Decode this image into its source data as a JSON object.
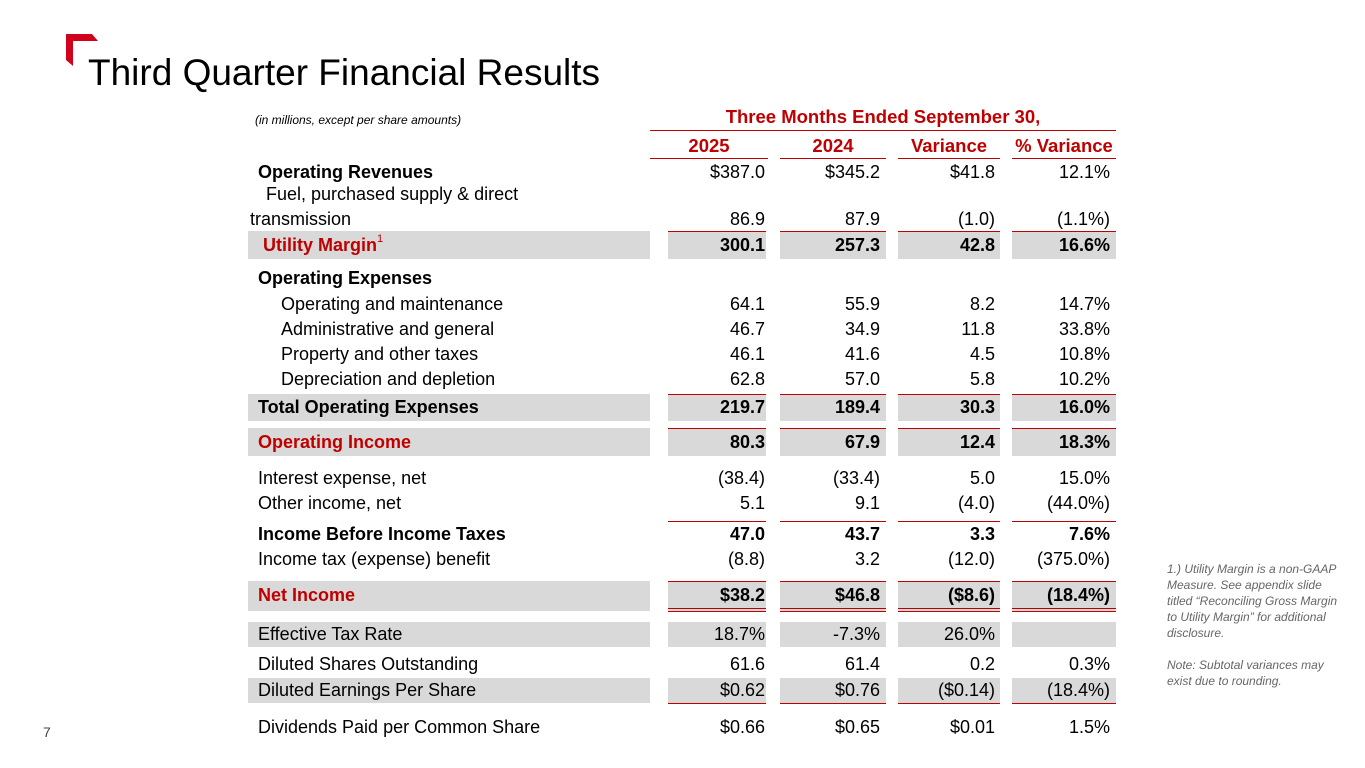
{
  "slide": {
    "title": "Third Quarter Financial Results",
    "page_number": "7",
    "accent_color": "#c00000"
  },
  "table": {
    "units_note": "(in millions, except per share amounts)",
    "period_header": "Three Months Ended September 30,",
    "columns": [
      "2025",
      "2024",
      "Variance",
      "% Variance"
    ],
    "rows": [
      {
        "label": "Operating Revenues",
        "values": [
          "$387.0",
          "$345.2",
          "$41.8",
          "12.1%"
        ]
      },
      {
        "label": "Fuel, purchased supply & direct",
        "label2": "transmission",
        "values": [
          "86.9",
          "87.9",
          "(1.0)",
          "(1.1%)"
        ]
      },
      {
        "label": "Utility Margin",
        "sup": "1",
        "values": [
          "300.1",
          "257.3",
          "42.8",
          "16.6%"
        ]
      },
      {
        "label": "Operating Expenses"
      },
      {
        "label": "Operating and maintenance",
        "values": [
          "64.1",
          "55.9",
          "8.2",
          "14.7%"
        ]
      },
      {
        "label": "Administrative and general",
        "values": [
          "46.7",
          "34.9",
          "11.8",
          "33.8%"
        ]
      },
      {
        "label": "Property and other taxes",
        "values": [
          "46.1",
          "41.6",
          "4.5",
          "10.8%"
        ]
      },
      {
        "label": "Depreciation and depletion",
        "values": [
          "62.8",
          "57.0",
          "5.8",
          "10.2%"
        ]
      },
      {
        "label": "Total Operating Expenses",
        "values": [
          "219.7",
          "189.4",
          "30.3",
          "16.0%"
        ]
      },
      {
        "label": "Operating Income",
        "values": [
          "80.3",
          "67.9",
          "12.4",
          "18.3%"
        ]
      },
      {
        "label": "Interest expense, net",
        "values": [
          "(38.4)",
          "(33.4)",
          "5.0",
          "15.0%"
        ]
      },
      {
        "label": "Other income, net",
        "values": [
          "5.1",
          "9.1",
          "(4.0)",
          "(44.0%)"
        ]
      },
      {
        "label": "Income Before Income Taxes",
        "values": [
          "47.0",
          "43.7",
          "3.3",
          "7.6%"
        ]
      },
      {
        "label": "Income tax (expense) benefit",
        "values": [
          "(8.8)",
          "3.2",
          "(12.0)",
          "(375.0%)"
        ]
      },
      {
        "label": "Net Income",
        "values": [
          "$38.2",
          "$46.8",
          "($8.6)",
          "(18.4%)"
        ]
      },
      {
        "label": "Effective Tax Rate",
        "values": [
          "18.7%",
          "-7.3%",
          "26.0%",
          ""
        ]
      },
      {
        "label": "Diluted Shares Outstanding",
        "values": [
          "61.6",
          "61.4",
          "0.2",
          "0.3%"
        ]
      },
      {
        "label": "Diluted Earnings Per Share",
        "values": [
          "$0.62",
          "$0.76",
          "($0.14)",
          "(18.4%)"
        ]
      },
      {
        "label": "Dividends Paid per Common Share",
        "values": [
          "$0.66",
          "$0.65",
          "$0.01",
          "1.5%"
        ]
      }
    ]
  },
  "footnotes": [
    "1.) Utility Margin is a non-GAAP Measure. See appendix slide titled “Reconciling Gross Margin to Utility Margin” for additional disclosure.",
    "Note: Subtotal variances may exist due to rounding."
  ]
}
